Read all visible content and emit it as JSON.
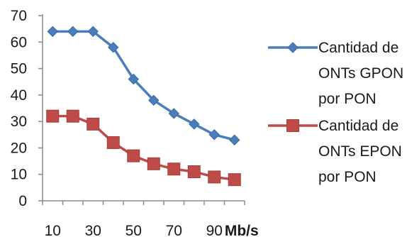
{
  "chart_data": {
    "type": "line",
    "title": "",
    "xlabel": "",
    "ylabel": "",
    "x_unit": "Mb/s",
    "x": [
      10,
      20,
      30,
      40,
      50,
      60,
      70,
      80,
      90,
      100
    ],
    "x_tick_labels": [
      "10",
      "30",
      "50",
      "70",
      "90"
    ],
    "ylim": [
      0,
      70
    ],
    "y_ticks": [
      0,
      10,
      20,
      30,
      40,
      50,
      60,
      70
    ],
    "grid": false,
    "legend_position": "right",
    "series": [
      {
        "name": "Cantidad de ONTs GPON por PON",
        "legend_lines": [
          "Cantidad de",
          "ONTs GPON",
          "por PON"
        ],
        "color": "#4a7ebb",
        "marker": "diamond",
        "values": [
          64,
          64,
          64,
          58,
          46,
          38,
          33,
          29,
          25,
          23
        ]
      },
      {
        "name": "Cantidad de ONTs EPON por PON",
        "legend_lines": [
          "Cantidad de",
          "ONTs EPON",
          "por PON"
        ],
        "color": "#be4b48",
        "marker": "square",
        "values": [
          32,
          32,
          29,
          22,
          17,
          14,
          12,
          11,
          9,
          8
        ]
      }
    ]
  }
}
